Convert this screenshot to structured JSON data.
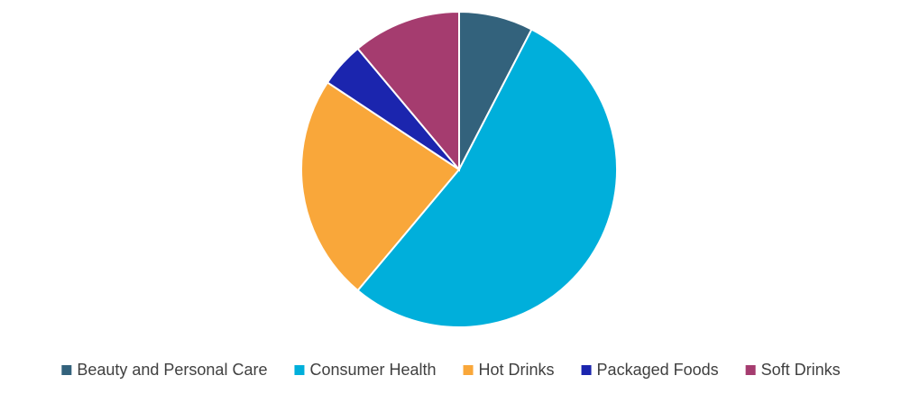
{
  "chart_data": {
    "type": "pie",
    "categories": [
      "Beauty and Personal Care",
      "Consumer Health",
      "Hot Drinks",
      "Packaged Foods",
      "Soft Drinks"
    ],
    "values": [
      7.6,
      53.5,
      23.2,
      4.6,
      11.1
    ],
    "colors": [
      "#33627c",
      "#00afdb",
      "#f9a73a",
      "#1b25ae",
      "#a53c6f"
    ],
    "legend": "bottom"
  }
}
